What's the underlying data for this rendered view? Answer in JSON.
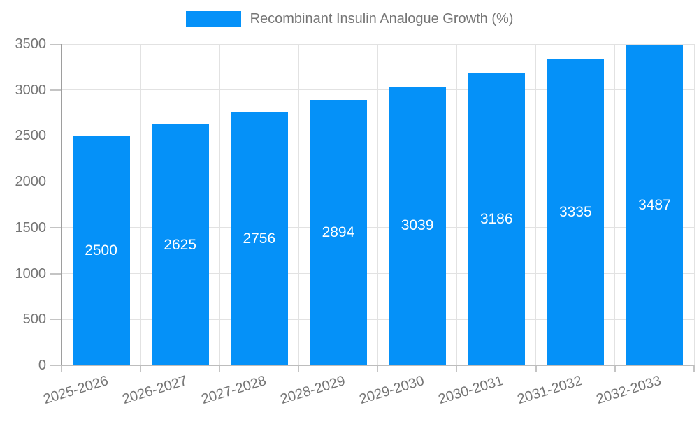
{
  "legend": {
    "label": "Recombinant Insulin Analogue Growth (%)"
  },
  "colors": {
    "bar": "#0591F8",
    "bar_label": "#FFFFFF",
    "grid": "#E2E2E2",
    "y_axis": "#9E9E9E",
    "x_axis": "#BDBDBD",
    "tick": "#C4C4C4",
    "text": "#757575"
  },
  "chart_data": {
    "type": "bar",
    "title": "Recombinant Insulin Analogue Growth (%)",
    "categories": [
      "2025-2026",
      "2026-2027",
      "2027-2028",
      "2028-2029",
      "2029-2030",
      "2030-2031",
      "2031-2032",
      "2032-2033"
    ],
    "values": [
      2500,
      2625,
      2756,
      2894,
      3039,
      3186,
      3335,
      3487
    ],
    "value_labels": [
      "2500",
      "2625",
      "2756",
      "2894",
      "3039",
      "3186",
      "3335",
      "3487"
    ],
    "xlabel": "",
    "ylabel": "",
    "ylim": [
      0,
      3500
    ],
    "y_ticks": [
      0,
      500,
      1000,
      1500,
      2000,
      2500,
      3000,
      3500
    ],
    "y_tick_labels": [
      "0",
      "500",
      "1000",
      "1500",
      "2000",
      "2500",
      "3000",
      "3500"
    ],
    "grid": true,
    "legend_position": "top-center",
    "bar_color": "#0591F8",
    "value_label_position": "inside-center"
  }
}
